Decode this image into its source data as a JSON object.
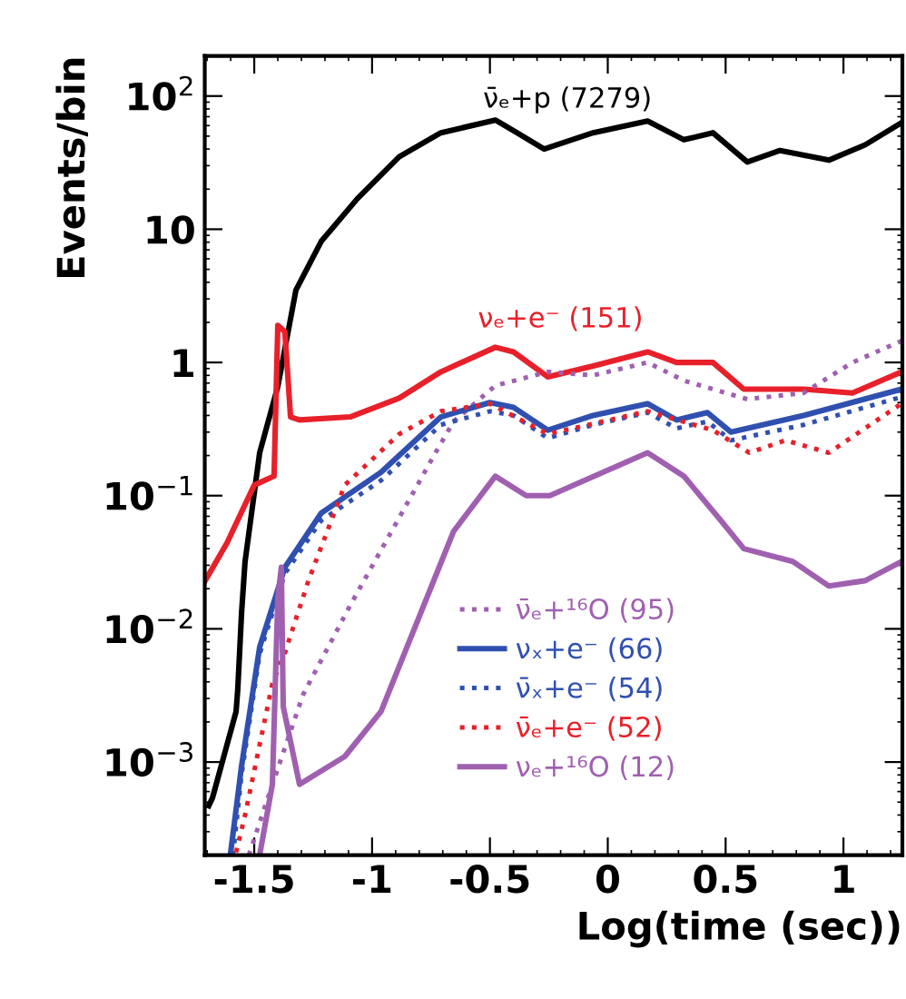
{
  "chart_data": {
    "type": "line",
    "xlabel": "Log(time (sec))",
    "ylabel": "Events/bin",
    "log": "y",
    "xlim": [
      -1.71,
      1.25
    ],
    "xticks": [
      -1.5,
      -1,
      -0.5,
      0,
      0.5,
      1
    ],
    "ylim": [
      0.0002,
      200
    ],
    "yticks": [
      {
        "value": 100,
        "label": "10$^{2}$"
      },
      10,
      1,
      {
        "value": 0.1,
        "label": "10$^{−1}$"
      },
      {
        "value": 0.01,
        "label": "10$^{−2}$"
      },
      {
        "value": 0.001,
        "label": "10$^{−3}$"
      }
    ],
    "grid": false,
    "legend": "bottom",
    "series": [
      {
        "name": "ν̄ₑ+p (7279)",
        "color": "#000000",
        "line_style": "solid",
        "x": [
          -1.693,
          -1.677,
          -1.577,
          -1.57,
          -1.554,
          -1.539,
          -1.477,
          -1.4,
          -1.323,
          -1.216,
          -1.062,
          -0.885,
          -0.708,
          -0.477,
          -0.4,
          -0.27,
          -0.062,
          0.169,
          0.323,
          0.446,
          0.592,
          0.731,
          0.938,
          1.092,
          1.246
        ],
        "values": [
          0.00047,
          0.00054,
          0.0024,
          0.0035,
          0.013,
          0.032,
          0.21,
          0.66,
          3.5,
          8.1,
          17,
          35,
          53,
          66,
          55,
          40,
          53,
          65,
          47,
          53,
          32,
          39,
          33,
          43,
          63
        ]
      },
      {
        "name": "νₑ+e⁻ (151)",
        "color": "#e8202a",
        "line_style": "solid",
        "x": [
          -1.708,
          -1.616,
          -1.5,
          -1.416,
          -1.4,
          -1.37,
          -1.346,
          -1.308,
          -1.093,
          -0.885,
          -0.708,
          -0.477,
          -0.4,
          -0.254,
          -0.062,
          0.169,
          0.292,
          0.446,
          0.577,
          0.831,
          1.038,
          1.246
        ],
        "values": [
          0.023,
          0.044,
          0.12,
          0.14,
          1.9,
          1.7,
          0.39,
          0.37,
          0.39,
          0.54,
          0.85,
          1.3,
          1.2,
          0.78,
          0.94,
          1.2,
          1.0,
          1.0,
          0.63,
          0.63,
          0.59,
          0.85
        ]
      },
      {
        "name": "ν̄ₑ+¹⁶O (95)",
        "color": "#a060b0",
        "line_style": "dotted",
        "x": [
          -1.523,
          -1.423,
          -1.293,
          -1.093,
          -0.731,
          -0.654,
          -0.477,
          -0.254,
          -0.062,
          0.169,
          0.323,
          0.592,
          0.831,
          1.038,
          1.246
        ],
        "values": [
          0.0002,
          0.00068,
          0.0032,
          0.015,
          0.21,
          0.36,
          0.67,
          0.85,
          0.8,
          1.0,
          0.73,
          0.53,
          0.59,
          1.0,
          1.45
        ]
      },
      {
        "name": "νₓ+e⁻ (66)",
        "color": "#3050b0",
        "line_style": "solid",
        "x": [
          -1.6,
          -1.554,
          -1.477,
          -1.37,
          -1.216,
          -0.962,
          -0.708,
          -0.5,
          -0.4,
          -0.254,
          -0.062,
          0.169,
          0.292,
          0.423,
          0.523,
          0.831,
          1.246
        ],
        "values": [
          0.00021,
          0.00093,
          0.0073,
          0.029,
          0.074,
          0.15,
          0.39,
          0.5,
          0.46,
          0.31,
          0.4,
          0.49,
          0.37,
          0.42,
          0.3,
          0.4,
          0.63
        ]
      },
      {
        "name": "ν̄ₓ+e⁻ (54)",
        "color": "#3050b0",
        "line_style": "dotted",
        "x": [
          -1.59,
          -1.554,
          -1.477,
          -1.37,
          -1.216,
          -0.962,
          -0.708,
          -0.5,
          -0.4,
          -0.254,
          -0.062,
          0.169,
          0.292,
          0.423,
          0.523,
          0.831,
          1.246
        ],
        "values": [
          0.0002,
          0.0008,
          0.0065,
          0.026,
          0.065,
          0.13,
          0.34,
          0.43,
          0.4,
          0.27,
          0.34,
          0.42,
          0.32,
          0.36,
          0.26,
          0.34,
          0.55
        ]
      },
      {
        "name": "ν̄ₑ+e⁻ (52)",
        "color": "#e8202a",
        "line_style": "dotted",
        "x": [
          -1.577,
          -1.539,
          -1.423,
          -1.37,
          -1.27,
          -1.116,
          -0.885,
          -0.708,
          -0.5,
          -0.254,
          0.169,
          0.446,
          0.6,
          0.754,
          0.938,
          1.246
        ],
        "values": [
          0.00021,
          0.0004,
          0.0039,
          0.0066,
          0.023,
          0.12,
          0.29,
          0.43,
          0.49,
          0.29,
          0.43,
          0.31,
          0.21,
          0.26,
          0.21,
          0.49
        ]
      },
      {
        "name": "νₑ+¹⁶O (12)",
        "color": "#a060b0",
        "line_style": "solid",
        "x": [
          -1.477,
          -1.423,
          -1.4,
          -1.385,
          -1.377,
          -1.308,
          -1.116,
          -0.962,
          -0.654,
          -0.477,
          -0.346,
          -0.246,
          0.169,
          0.323,
          0.477,
          0.577,
          0.785,
          0.938,
          1.092,
          1.246
        ],
        "values": [
          0.0002,
          0.00068,
          0.017,
          0.029,
          0.0026,
          0.00068,
          0.0011,
          0.0024,
          0.054,
          0.14,
          0.1,
          0.1,
          0.21,
          0.14,
          0.066,
          0.04,
          0.032,
          0.021,
          0.023,
          0.032
        ]
      }
    ]
  }
}
